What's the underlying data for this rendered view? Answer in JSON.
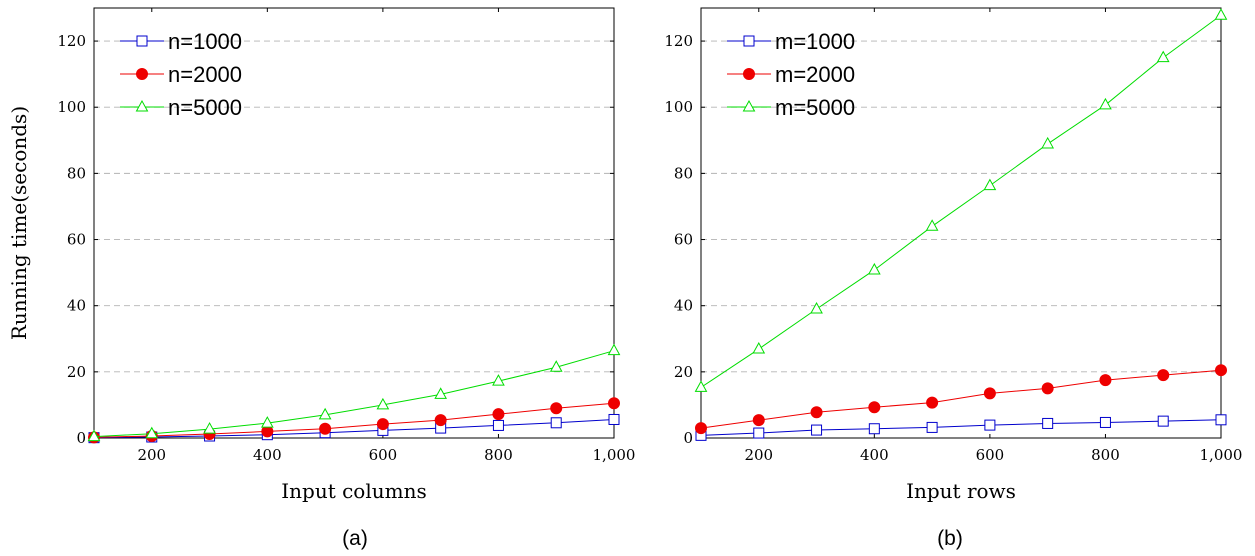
{
  "chart_data": [
    {
      "type": "line",
      "caption": "(a)",
      "xlabel": "Input columns",
      "ylabel": "Running time(seconds)",
      "xlim": [
        100,
        1000
      ],
      "ylim": [
        0,
        130
      ],
      "xticks": [
        200,
        400,
        600,
        800,
        1000
      ],
      "xtick_labels": [
        "200",
        "400",
        "600",
        "800",
        "1,000"
      ],
      "yticks": [
        0,
        20,
        40,
        60,
        80,
        100,
        120
      ],
      "ytick_labels": [
        "0",
        "20",
        "40",
        "60",
        "80",
        "100",
        "120"
      ],
      "grid": "horizontal dashed",
      "legend_position": "top-left",
      "x": [
        100,
        200,
        300,
        400,
        500,
        600,
        700,
        800,
        900,
        1000
      ],
      "series": [
        {
          "name": "n=1000",
          "color": "#0000cc",
          "marker": "square-open",
          "values": [
            0.1,
            0.3,
            0.6,
            1.0,
            1.6,
            2.3,
            3.0,
            3.8,
            4.6,
            5.6
          ]
        },
        {
          "name": "n=2000",
          "color": "#ee0000",
          "marker": "circle-filled",
          "values": [
            0.2,
            0.6,
            1.2,
            2.0,
            2.8,
            4.2,
            5.4,
            7.2,
            9.0,
            10.5
          ]
        },
        {
          "name": "n=5000",
          "color": "#00dd00",
          "marker": "triangle-open",
          "values": [
            0.4,
            1.3,
            2.7,
            4.5,
            7.0,
            10.0,
            13.2,
            17.2,
            21.4,
            26.4
          ]
        }
      ]
    },
    {
      "type": "line",
      "caption": "(b)",
      "xlabel": "Input rows",
      "ylabel": "",
      "xlim": [
        100,
        1000
      ],
      "ylim": [
        0,
        130
      ],
      "xticks": [
        200,
        400,
        600,
        800,
        1000
      ],
      "xtick_labels": [
        "200",
        "400",
        "600",
        "800",
        "1,000"
      ],
      "yticks": [
        0,
        20,
        40,
        60,
        80,
        100,
        120
      ],
      "ytick_labels": [
        "0",
        "20",
        "40",
        "60",
        "80",
        "100",
        "120"
      ],
      "grid": "horizontal dashed",
      "legend_position": "top-left",
      "x": [
        100,
        200,
        300,
        400,
        500,
        600,
        700,
        800,
        900,
        1000
      ],
      "series": [
        {
          "name": "m=1000",
          "color": "#0000cc",
          "marker": "square-open",
          "values": [
            0.8,
            1.5,
            2.4,
            2.8,
            3.2,
            3.9,
            4.4,
            4.7,
            5.1,
            5.5
          ]
        },
        {
          "name": "m=2000",
          "color": "#ee0000",
          "marker": "circle-filled",
          "values": [
            3.0,
            5.4,
            7.8,
            9.3,
            10.7,
            13.5,
            15.0,
            17.5,
            19.0,
            20.5
          ]
        },
        {
          "name": "m=5000",
          "color": "#00dd00",
          "marker": "triangle-open",
          "values": [
            15.3,
            26.9,
            39.0,
            50.8,
            64.0,
            76.3,
            88.9,
            100.7,
            115.0,
            127.8
          ]
        }
      ]
    }
  ]
}
